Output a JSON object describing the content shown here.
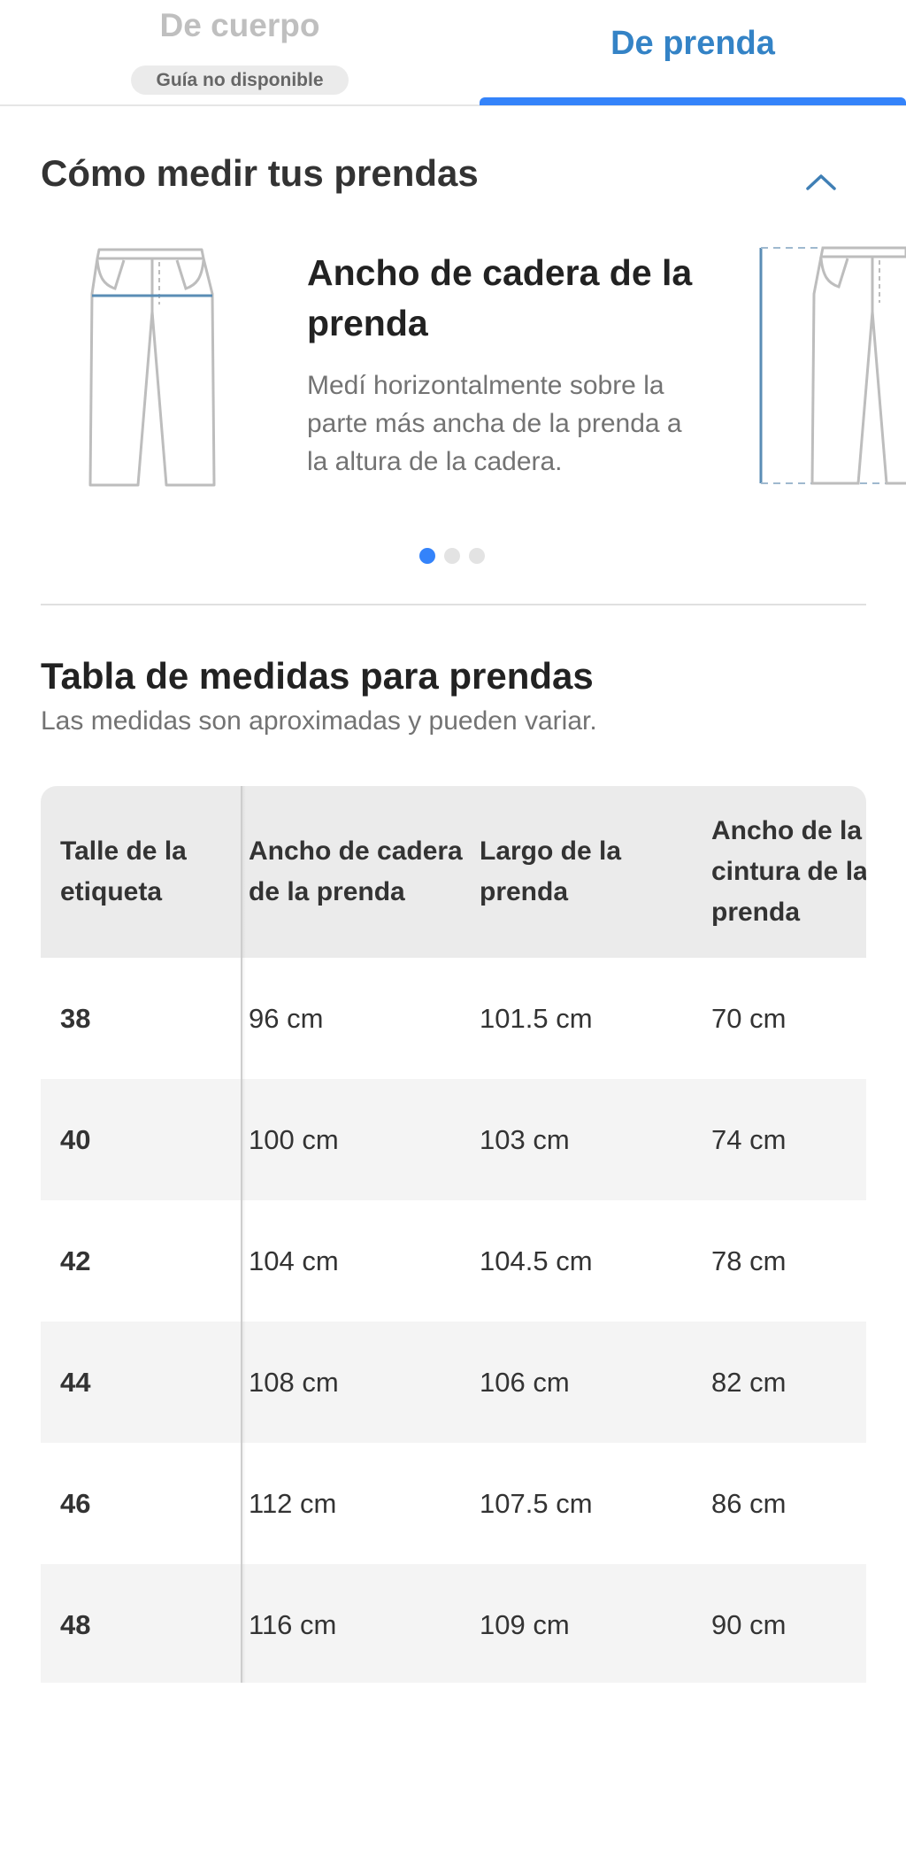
{
  "tabs": {
    "body": {
      "label": "De cuerpo",
      "badge": "Guía no disponible"
    },
    "garment": {
      "label": "De prenda"
    }
  },
  "how_to": {
    "title": "Cómo medir tus prendas",
    "slide": {
      "title": "Ancho de cadera de la prenda",
      "description": "Medí horizontalmente sobre la parte más ancha de la prenda a la altura de la cadera."
    },
    "dots": 3,
    "active_dot": 1
  },
  "size_table": {
    "title": "Tabla de medidas para prendas",
    "subtitle": "Las medidas son aproximadas y pueden variar.",
    "headers": [
      "Talle de la etiqueta",
      "Ancho de cadera de la prenda",
      "Largo de la prenda",
      "Ancho de la cintura de la prenda"
    ],
    "rows": [
      [
        "38",
        "96 cm",
        "101.5 cm",
        "70 cm"
      ],
      [
        "40",
        "100 cm",
        "103 cm",
        "74 cm"
      ],
      [
        "42",
        "104 cm",
        "104.5 cm",
        "78 cm"
      ],
      [
        "44",
        "108 cm",
        "106 cm",
        "82 cm"
      ],
      [
        "46",
        "112 cm",
        "107.5 cm",
        "86 cm"
      ],
      [
        "48",
        "116 cm",
        "109 cm",
        "90 cm"
      ]
    ]
  },
  "colors": {
    "accent": "#3483fa",
    "tab_active_text": "#3483c6",
    "illustration_line": "#bdbdbd",
    "measure_line": "#5a8db5"
  }
}
